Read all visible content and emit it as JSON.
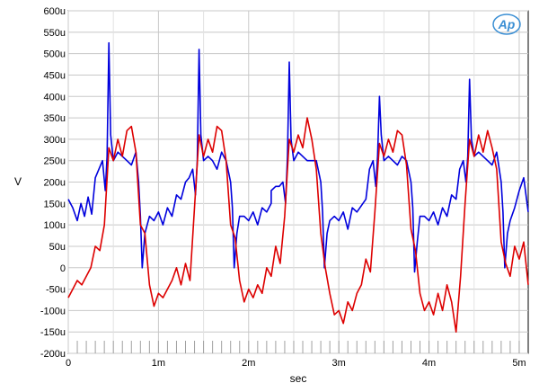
{
  "chart_data": {
    "type": "line",
    "title": "",
    "xlabel": "sec",
    "ylabel": "V",
    "xlim": [
      0,
      0.0051
    ],
    "ylim": [
      -0.0002,
      0.0006
    ],
    "x_ticks": [
      {
        "value": 0,
        "label": "0"
      },
      {
        "value": 0.001,
        "label": "1m"
      },
      {
        "value": 0.002,
        "label": "2m"
      },
      {
        "value": 0.003,
        "label": "3m"
      },
      {
        "value": 0.004,
        "label": "4m"
      },
      {
        "value": 0.005,
        "label": "5m"
      }
    ],
    "y_ticks": [
      {
        "value": 0.0006,
        "label": "600u"
      },
      {
        "value": 0.00055,
        "label": "550u"
      },
      {
        "value": 0.0005,
        "label": "500u"
      },
      {
        "value": 0.00045,
        "label": "450u"
      },
      {
        "value": 0.0004,
        "label": "400u"
      },
      {
        "value": 0.00035,
        "label": "350u"
      },
      {
        "value": 0.0003,
        "label": "300u"
      },
      {
        "value": 0.00025,
        "label": "250u"
      },
      {
        "value": 0.0002,
        "label": "200u"
      },
      {
        "value": 0.00015,
        "label": "150u"
      },
      {
        "value": 0.0001,
        "label": "100u"
      },
      {
        "value": 5e-05,
        "label": "50u"
      },
      {
        "value": 0,
        "label": "0"
      },
      {
        "value": -5e-05,
        "label": "-50u"
      },
      {
        "value": -0.0001,
        "label": "-100u"
      },
      {
        "value": -0.00015,
        "label": "-150u"
      },
      {
        "value": -0.0002,
        "label": "-200u"
      }
    ],
    "grid": true,
    "logo_text": "Ap",
    "series": [
      {
        "color": "#0000dd",
        "x": [
          0.0,
          5e-05,
          0.0001,
          0.00014,
          0.00018,
          0.00022,
          0.00026,
          0.0003,
          0.00034,
          0.00038,
          0.00041,
          0.00043,
          0.00045,
          0.00047,
          0.0005,
          0.00055,
          0.0006,
          0.00065,
          0.0007,
          0.00075,
          0.00078,
          0.0008,
          0.00082,
          0.00085,
          0.0009,
          0.00095,
          0.001,
          0.00105,
          0.0011,
          0.00115,
          0.0012,
          0.00125,
          0.0013,
          0.00134,
          0.00138,
          0.00141,
          0.00143,
          0.00145,
          0.00147,
          0.0015,
          0.00155,
          0.0016,
          0.00165,
          0.0017,
          0.00175,
          0.0018,
          0.00182,
          0.00184,
          0.00187,
          0.0019,
          0.00195,
          0.002,
          0.00205,
          0.0021,
          0.00215,
          0.0022,
          0.00225,
          0.0023,
          0.00234,
          0.00238,
          0.00241,
          0.00243,
          0.00245,
          0.00247,
          0.0025,
          0.00255,
          0.0026,
          0.00265,
          0.0027,
          0.00275,
          0.0028,
          0.00282,
          0.00284,
          0.00287,
          0.0029,
          0.00295,
          0.003,
          0.00305,
          0.0031,
          0.00315,
          0.0032,
          0.00225,
          0.0033,
          0.00334,
          0.00338,
          0.00341,
          0.00343,
          0.00345,
          0.00347,
          0.0035,
          0.00355,
          0.0036,
          0.00365,
          0.0037,
          0.00375,
          0.0038,
          0.00382,
          0.00384,
          0.00387,
          0.0039,
          0.00395,
          0.004,
          0.00405,
          0.0041,
          0.00415,
          0.0042,
          0.00425,
          0.0043,
          0.00434,
          0.00438,
          0.00441,
          0.00443,
          0.00445,
          0.00447,
          0.0045,
          0.00455,
          0.0046,
          0.00465,
          0.0047,
          0.00475,
          0.0048,
          0.00482,
          0.00484,
          0.00487,
          0.0049,
          0.00495,
          0.005,
          0.00505,
          0.0051
        ],
        "y": [
          0.00016,
          0.00014,
          0.00011,
          0.00015,
          0.00012,
          0.000165,
          0.000125,
          0.00021,
          0.00023,
          0.00025,
          0.00018,
          0.00026,
          0.000525,
          0.00031,
          0.00025,
          0.00027,
          0.00026,
          0.00025,
          0.00024,
          0.00027,
          0.0002,
          0.00012,
          0.0,
          8e-05,
          0.00012,
          0.00011,
          0.00013,
          0.0001,
          0.00014,
          0.00012,
          0.00017,
          0.00016,
          0.0002,
          0.00021,
          0.00023,
          0.00017,
          0.00025,
          0.00051,
          0.00031,
          0.00025,
          0.00026,
          0.00025,
          0.00023,
          0.00027,
          0.00025,
          0.0002,
          0.00014,
          0.0,
          8e-05,
          0.00012,
          0.00012,
          0.00011,
          0.00013,
          0.0001,
          0.00014,
          0.00013,
          0.00015,
          0.00019,
          0.00019,
          0.0002,
          0.00015,
          0.00026,
          0.00048,
          0.0003,
          0.00025,
          0.00027,
          0.00026,
          0.00025,
          0.00025,
          0.00025,
          0.0002,
          0.00013,
          0.0,
          8e-05,
          0.00011,
          0.00012,
          0.00011,
          0.00013,
          9e-05,
          0.00014,
          0.00013,
          0.00018,
          0.00016,
          0.00023,
          0.00025,
          0.00019,
          0.00026,
          0.0004,
          0.00031,
          0.00025,
          0.00026,
          0.00025,
          0.00024,
          0.00026,
          0.00025,
          0.0002,
          0.00014,
          -1e-05,
          6e-05,
          0.00012,
          0.00012,
          0.00011,
          0.00013,
          0.0001,
          0.00014,
          0.00012,
          0.00017,
          0.00016,
          0.00023,
          0.00025,
          0.0002,
          0.00026,
          0.00044,
          0.0003,
          0.00026,
          0.00027,
          0.00026,
          0.00025,
          0.00024,
          0.00027,
          0.0002,
          0.00013,
          0.0,
          8e-05,
          0.00011,
          0.00014,
          0.00018,
          0.00021,
          0.00013
        ]
      },
      {
        "color": "#dd0000",
        "x": [
          0.0,
          5e-05,
          0.0001,
          0.00015,
          0.0002,
          0.00025,
          0.0003,
          0.00035,
          0.0004,
          0.00045,
          0.0005,
          0.00055,
          0.0006,
          0.00065,
          0.0007,
          0.00075,
          0.0008,
          0.00085,
          0.0009,
          0.00095,
          0.001,
          0.00105,
          0.0011,
          0.00115,
          0.0012,
          0.00125,
          0.0013,
          0.00135,
          0.0014,
          0.00145,
          0.0015,
          0.00155,
          0.0016,
          0.00165,
          0.0017,
          0.00175,
          0.0018,
          0.00185,
          0.0019,
          0.00195,
          0.002,
          0.00205,
          0.0021,
          0.00215,
          0.0022,
          0.00225,
          0.0023,
          0.00235,
          0.0024,
          0.00245,
          0.0025,
          0.00255,
          0.0026,
          0.00265,
          0.0027,
          0.00275,
          0.0028,
          0.00285,
          0.0029,
          0.00295,
          0.003,
          0.00305,
          0.0031,
          0.00315,
          0.0032,
          0.00325,
          0.0033,
          0.00335,
          0.0034,
          0.00345,
          0.0035,
          0.00355,
          0.0036,
          0.00365,
          0.0037,
          0.00375,
          0.0038,
          0.00385,
          0.0039,
          0.00395,
          0.004,
          0.00405,
          0.0041,
          0.00415,
          0.0042,
          0.00425,
          0.0043,
          0.00435,
          0.0044,
          0.00445,
          0.0045,
          0.00455,
          0.0046,
          0.00465,
          0.0047,
          0.00475,
          0.0048,
          0.00485,
          0.0049,
          0.00495,
          0.005,
          0.00505,
          0.0051
        ],
        "y": [
          -7e-05,
          -5e-05,
          -3e-05,
          -4e-05,
          -2e-05,
          0.0,
          5e-05,
          4e-05,
          0.0001,
          0.00028,
          0.00025,
          0.0003,
          0.00026,
          0.00032,
          0.00033,
          0.00027,
          0.0001,
          8e-05,
          -4e-05,
          -9e-05,
          -6e-05,
          -7e-05,
          -5e-05,
          -3e-05,
          0.0,
          -4e-05,
          1e-05,
          -3e-05,
          0.00014,
          0.00031,
          0.00026,
          0.0003,
          0.00027,
          0.00033,
          0.00032,
          0.00025,
          0.0001,
          7e-05,
          -3e-05,
          -8e-05,
          -5e-05,
          -7e-05,
          -4e-05,
          -6e-05,
          0.0,
          -2e-05,
          5e-05,
          1e-05,
          0.00012,
          0.0003,
          0.00027,
          0.00031,
          0.00028,
          0.00035,
          0.0003,
          0.00023,
          8e-05,
          0.0,
          -6e-05,
          -0.00011,
          -0.0001,
          -0.00013,
          -8e-05,
          -0.0001,
          -6e-05,
          -4e-05,
          2e-05,
          -1e-05,
          0.00013,
          0.00029,
          0.00026,
          0.0003,
          0.00027,
          0.00032,
          0.00031,
          0.00024,
          9e-05,
          4e-05,
          -6e-05,
          -0.0001,
          -8e-05,
          -0.00011,
          -6e-05,
          -0.0001,
          -4e-05,
          -8e-05,
          -0.00015,
          -2e-05,
          0.00015,
          0.0003,
          0.00026,
          0.00031,
          0.00027,
          0.00032,
          0.00028,
          0.00023,
          6e-05,
          1e-05,
          -2e-05,
          5e-05,
          2e-05,
          6e-05,
          -4e-05
        ]
      }
    ]
  }
}
